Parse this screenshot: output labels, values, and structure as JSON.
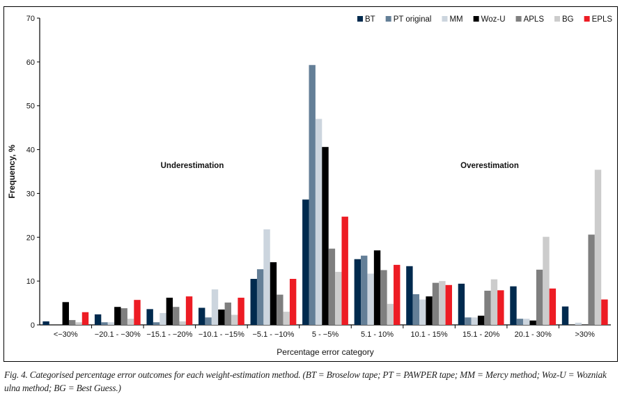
{
  "chart_data": {
    "type": "bar",
    "xlabel": "Percentage error category",
    "ylabel": "Frequency, %",
    "ylim": [
      0,
      70
    ],
    "yticks": [
      0,
      10,
      20,
      30,
      40,
      50,
      60,
      70
    ],
    "grid": false,
    "legend_position": "top-right",
    "annotations": [
      "Underestimation",
      "Overestimation"
    ],
    "categories": [
      "<−30%",
      "−20.1 - −30%",
      "−15.1 - −20%",
      "−10.1 - −15%",
      "−5.1 - −10%",
      "5 - −5%",
      "5.1 - 10%",
      "10.1 - 15%",
      "15.1 - 20%",
      "20.1 - 30%",
      ">30%"
    ],
    "series": [
      {
        "name": "BT",
        "color": "#002a4e",
        "values": [
          0.8,
          2.4,
          3.6,
          3.9,
          10.5,
          28.6,
          15.0,
          13.4,
          9.4,
          8.8,
          4.2
        ]
      },
      {
        "name": "PT original",
        "color": "#647f97",
        "values": [
          0,
          0.6,
          0.6,
          1.7,
          12.7,
          59.3,
          15.8,
          7.0,
          1.7,
          1.4,
          0
        ]
      },
      {
        "name": "MM",
        "color": "#ccd5de",
        "values": [
          0,
          0.6,
          2.7,
          8.1,
          21.8,
          47.0,
          11.7,
          5.8,
          1.7,
          1.4,
          0.5
        ]
      },
      {
        "name": "Woz-U",
        "color": "#000000",
        "values": [
          5.2,
          4.1,
          6.2,
          3.5,
          14.3,
          40.6,
          17.0,
          6.5,
          2.1,
          1.0,
          0
        ]
      },
      {
        "name": "APLS",
        "color": "#7f7f7f",
        "values": [
          1.1,
          3.8,
          4.1,
          5.1,
          6.9,
          17.4,
          12.5,
          9.6,
          7.8,
          12.6,
          20.6
        ]
      },
      {
        "name": "BG",
        "color": "#cccccc",
        "values": [
          0.6,
          1.4,
          0.8,
          2.3,
          3.0,
          12.1,
          4.8,
          10.0,
          10.4,
          20.1,
          35.4
        ]
      },
      {
        "name": "EPLS",
        "color": "#ed1c24",
        "values": [
          2.9,
          5.7,
          6.5,
          6.2,
          10.5,
          24.7,
          13.7,
          9.1,
          7.9,
          8.3,
          5.8
        ]
      }
    ]
  },
  "caption": "Fig. 4. Categorised percentage error outcomes for each weight-estimation method. (BT = Broselow tape; PT = PAWPER tape; MM = Mercy method; Woz-U = Wozniak ulna method; BG = Best Guess.)"
}
